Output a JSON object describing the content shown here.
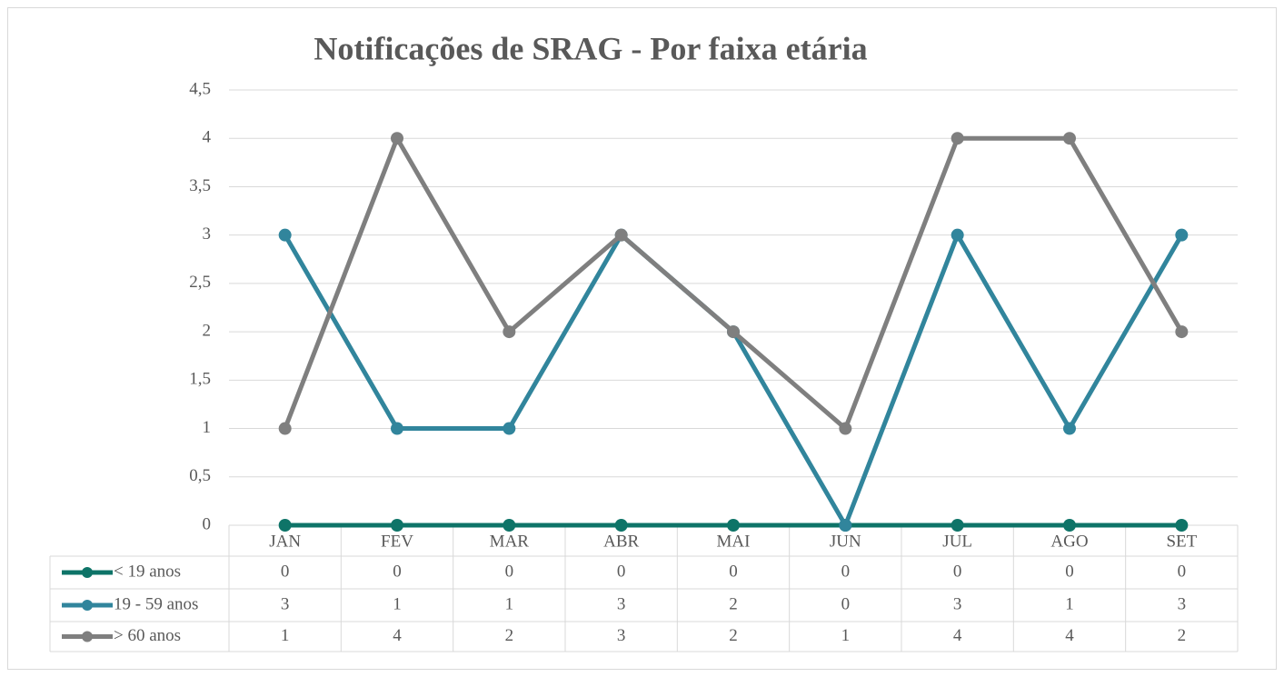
{
  "chart_data": {
    "type": "line",
    "title": "Notificações de SRAG - Por faixa etária",
    "categories": [
      "JAN",
      "FEV",
      "MAR",
      "ABR",
      "MAI",
      "JUN",
      "JUL",
      "AGO",
      "SET"
    ],
    "series": [
      {
        "name": "< 19 anos",
        "color": "#0e7468",
        "values": [
          0,
          0,
          0,
          0,
          0,
          0,
          0,
          0,
          0
        ]
      },
      {
        "name": "19 - 59 anos",
        "color": "#31859c",
        "values": [
          3,
          1,
          1,
          3,
          2,
          0,
          3,
          1,
          3
        ]
      },
      {
        "name": "> 60 anos",
        "color": "#7f7f7f",
        "values": [
          1,
          4,
          2,
          3,
          2,
          1,
          4,
          4,
          2
        ]
      }
    ],
    "ylim": [
      0,
      4.5
    ],
    "yticks": [
      0,
      {
        "value": 0.5,
        "label": "0,5"
      },
      1,
      {
        "value": 1.5,
        "label": "1,5"
      },
      2,
      {
        "value": 2.5,
        "label": "2,5"
      },
      3,
      {
        "value": 3.5,
        "label": "3,5"
      },
      4,
      {
        "value": 4.5,
        "label": "4,5"
      }
    ],
    "grid": true
  }
}
